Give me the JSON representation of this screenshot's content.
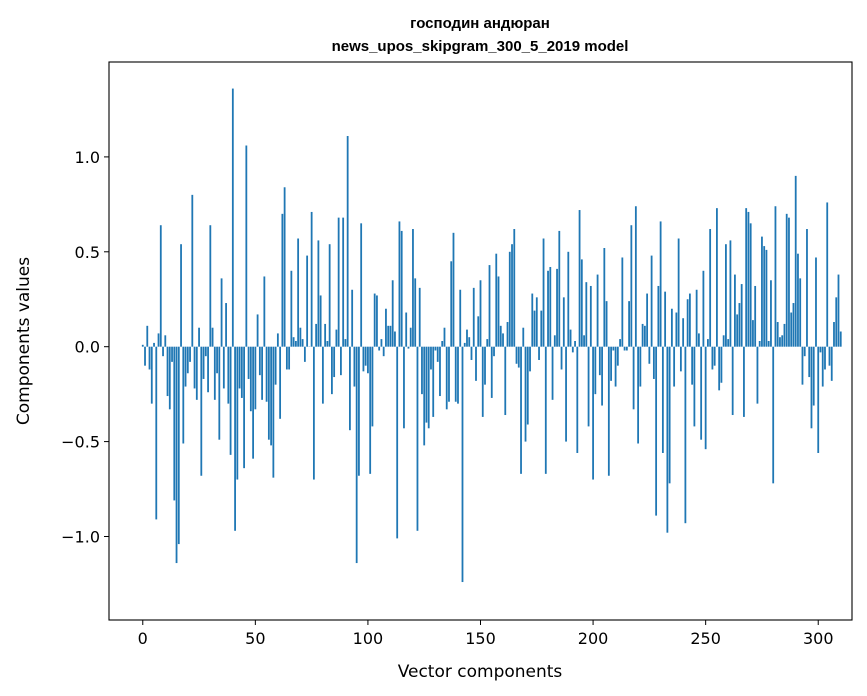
{
  "chart_data": {
    "type": "bar",
    "title_line1": "господин андюран",
    "title_line2": "news_upos_skipgram_300_5_2019 model",
    "xlabel": "Vector components",
    "ylabel": "Components values",
    "xlim": [
      -15,
      315
    ],
    "ylim": [
      -1.44,
      1.5
    ],
    "xticks": [
      0,
      50,
      100,
      150,
      200,
      250,
      300
    ],
    "xtick_labels": [
      "0",
      "50",
      "100",
      "150",
      "200",
      "250",
      "300"
    ],
    "yticks": [
      -1.0,
      -0.5,
      0.0,
      0.5,
      1.0
    ],
    "ytick_labels": [
      "−1.0",
      "−0.5",
      "0.0",
      "0.5",
      "1.0"
    ],
    "bar_color": "#1f77b4",
    "values": [
      0.01,
      -0.1,
      0.11,
      -0.12,
      -0.3,
      0.02,
      -0.91,
      0.07,
      0.64,
      -0.05,
      0.06,
      -0.26,
      -0.33,
      -0.08,
      -0.81,
      -1.14,
      -1.04,
      0.54,
      -0.51,
      -0.21,
      -0.14,
      -0.08,
      0.8,
      -0.22,
      -0.28,
      0.1,
      -0.68,
      -0.17,
      -0.05,
      -0.24,
      0.64,
      0.1,
      -0.28,
      -0.14,
      -0.49,
      0.36,
      -0.22,
      0.23,
      -0.3,
      -0.57,
      1.36,
      -0.97,
      -0.7,
      -0.22,
      -0.27,
      -0.64,
      1.06,
      -0.17,
      -0.34,
      -0.59,
      -0.33,
      0.17,
      -0.15,
      -0.28,
      0.37,
      -0.29,
      -0.49,
      -0.52,
      -0.69,
      -0.2,
      0.07,
      -0.38,
      0.7,
      0.84,
      -0.12,
      -0.12,
      0.4,
      0.05,
      0.03,
      0.57,
      0.1,
      0.04,
      -0.08,
      0.48,
      0.0,
      0.71,
      -0.7,
      0.12,
      0.56,
      0.27,
      -0.3,
      0.12,
      0.03,
      0.54,
      -0.25,
      -0.16,
      0.09,
      0.68,
      -0.15,
      0.68,
      0.04,
      1.11,
      -0.44,
      0.3,
      -0.21,
      -1.14,
      -0.68,
      0.65,
      -0.13,
      -0.1,
      -0.14,
      -0.67,
      -0.42,
      0.28,
      0.27,
      -0.02,
      0.04,
      -0.05,
      0.2,
      0.11,
      0.11,
      0.35,
      0.08,
      -1.01,
      0.66,
      0.61,
      -0.43,
      0.18,
      -0.01,
      0.1,
      0.62,
      0.36,
      -0.97,
      0.31,
      -0.25,
      -0.52,
      -0.4,
      -0.43,
      -0.12,
      -0.37,
      -0.02,
      -0.08,
      -0.26,
      0.03,
      0.1,
      -0.33,
      -0.29,
      0.45,
      0.6,
      -0.29,
      -0.3,
      0.3,
      -1.24,
      0.02,
      0.09,
      0.05,
      -0.07,
      0.31,
      -0.18,
      0.16,
      0.35,
      -0.37,
      -0.2,
      0.04,
      0.43,
      -0.27,
      -0.05,
      0.49,
      0.37,
      0.11,
      0.07,
      -0.36,
      0.13,
      0.5,
      0.54,
      0.62,
      -0.09,
      -0.11,
      -0.67,
      0.1,
      -0.5,
      -0.41,
      -0.13,
      0.28,
      0.19,
      0.26,
      -0.07,
      0.19,
      0.57,
      -0.67,
      0.4,
      0.42,
      -0.28,
      0.06,
      0.41,
      0.61,
      -0.12,
      0.26,
      -0.5,
      0.5,
      0.09,
      -0.03,
      0.03,
      -0.56,
      0.72,
      0.46,
      0.06,
      0.34,
      -0.42,
      0.32,
      -0.7,
      -0.25,
      0.38,
      -0.15,
      -0.31,
      0.52,
      0.24,
      -0.68,
      -0.18,
      -0.02,
      -0.21,
      -0.1,
      0.04,
      0.47,
      -0.02,
      -0.02,
      0.24,
      0.64,
      -0.33,
      0.74,
      -0.51,
      -0.21,
      0.12,
      0.11,
      0.28,
      -0.09,
      0.48,
      -0.17,
      -0.89,
      0.32,
      0.66,
      -0.56,
      0.29,
      -0.98,
      -0.72,
      0.2,
      -0.21,
      0.18,
      0.57,
      -0.13,
      0.15,
      -0.93,
      0.25,
      0.28,
      -0.2,
      -0.42,
      0.3,
      0.07,
      -0.49,
      0.4,
      -0.54,
      0.04,
      0.62,
      -0.12,
      -0.1,
      0.73,
      -0.23,
      -0.19,
      0.06,
      0.54,
      0.04,
      0.56,
      -0.36,
      0.38,
      0.17,
      0.23,
      0.33,
      -0.37,
      0.73,
      0.71,
      0.65,
      0.14,
      0.32,
      -0.3,
      0.03,
      0.58,
      0.53,
      0.51,
      0.03,
      0.35,
      -0.72,
      0.74,
      0.13,
      0.05,
      0.06,
      0.12,
      0.7,
      0.68,
      0.18,
      0.23,
      0.9,
      0.49,
      0.36,
      -0.2,
      -0.05,
      0.62,
      -0.16,
      -0.43,
      -0.31,
      0.47,
      -0.56,
      -0.03,
      -0.21,
      -0.12,
      0.76,
      -0.1,
      -0.18,
      0.13,
      0.26,
      0.38,
      0.08
    ]
  }
}
